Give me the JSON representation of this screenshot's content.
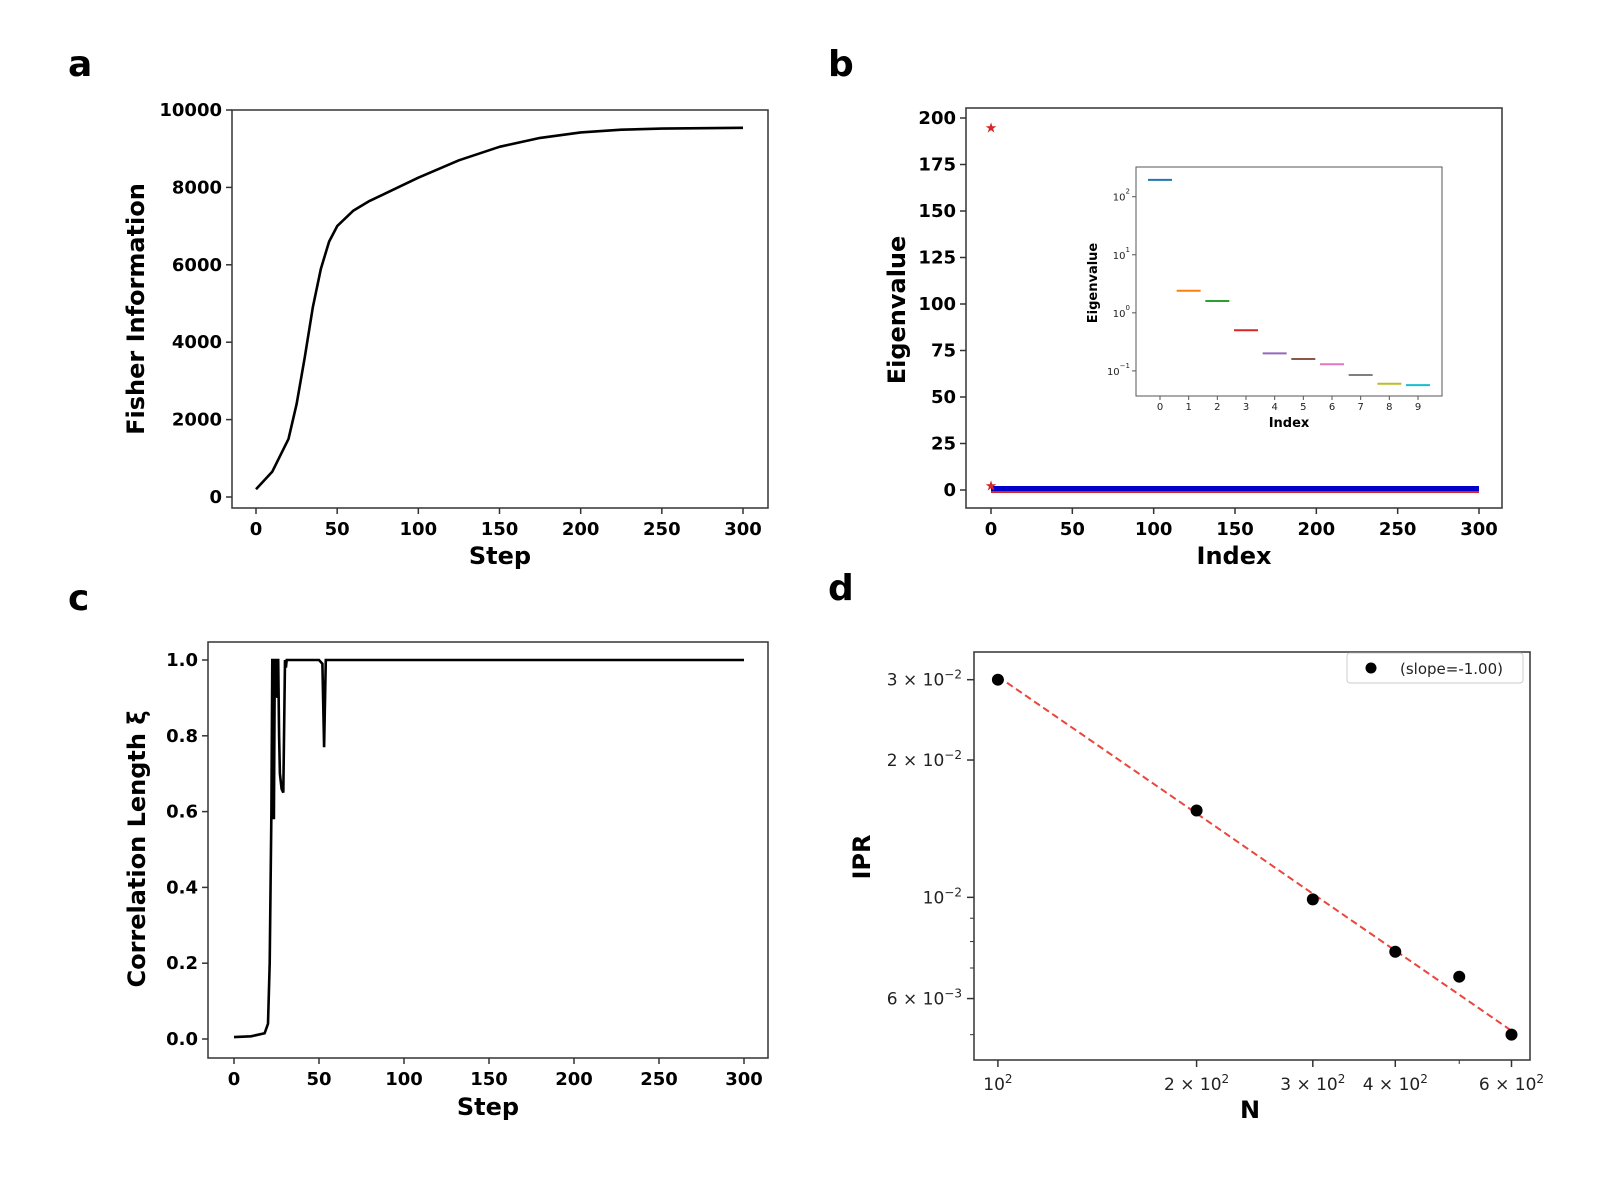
{
  "chart_data": [
    {
      "panel": "a",
      "type": "line",
      "xlabel": "Step",
      "ylabel": "Fisher Information",
      "xlim": [
        0,
        300
      ],
      "ylim": [
        0,
        10000
      ],
      "xticks": [
        0,
        50,
        100,
        150,
        200,
        250,
        300
      ],
      "yticks": [
        0,
        2000,
        4000,
        6000,
        8000,
        10000
      ],
      "x": [
        0,
        10,
        20,
        25,
        30,
        35,
        40,
        45,
        50,
        60,
        70,
        80,
        100,
        125,
        150,
        175,
        200,
        225,
        250,
        275,
        300
      ],
      "y": [
        200,
        650,
        1500,
        2400,
        3600,
        4900,
        5900,
        6600,
        7000,
        7400,
        7650,
        7850,
        8250,
        8700,
        9050,
        9280,
        9420,
        9490,
        9520,
        9530,
        9540
      ],
      "color": "#000000"
    },
    {
      "panel": "b",
      "type": "scatter",
      "xlabel": "Index",
      "ylabel": "Eigenvalue",
      "xlim": [
        0,
        300
      ],
      "ylim": [
        0,
        200
      ],
      "xticks": [
        0,
        50,
        100,
        150,
        200,
        250,
        300
      ],
      "yticks": [
        0,
        25,
        50,
        75,
        100,
        125,
        150,
        175,
        200
      ],
      "points": [
        {
          "x": 0,
          "y": 195,
          "color": "#d62728",
          "marker": "star"
        },
        {
          "x": 0,
          "y": 2.5,
          "color": "#d62728",
          "marker": "star"
        }
      ],
      "band": {
        "x_from": 0,
        "x_to": 300,
        "y": 0,
        "colors": [
          "#0000cc",
          "#d62728"
        ]
      },
      "inset": {
        "type": "bar-levels",
        "xlabel": "Index",
        "ylabel": "Eigenvalue",
        "yscale": "log",
        "xticks": [
          0,
          1,
          2,
          3,
          4,
          5,
          6,
          7,
          8,
          9
        ],
        "yticks": [
          {
            "label": "10",
            "exp": "-1"
          },
          {
            "label": "10",
            "exp": "0"
          },
          {
            "label": "10",
            "exp": "1"
          },
          {
            "label": "10",
            "exp": "2"
          }
        ],
        "values": [
          195,
          2.4,
          1.6,
          0.5,
          0.2,
          0.16,
          0.13,
          0.085,
          0.06,
          0.057
        ],
        "colors": [
          "#1f77b4",
          "#ff7f0e",
          "#2ca02c",
          "#d62728",
          "#9467bd",
          "#8c564b",
          "#e377c2",
          "#7f7f7f",
          "#bcbd22",
          "#17becf"
        ]
      }
    },
    {
      "panel": "c",
      "type": "line",
      "xlabel": "Step",
      "ylabel": "Correlation Length ξ",
      "xlim": [
        0,
        300
      ],
      "ylim": [
        0,
        1
      ],
      "xticks": [
        0,
        50,
        100,
        150,
        200,
        250,
        300
      ],
      "yticks": [
        "0.0",
        "0.2",
        "0.4",
        "0.6",
        "0.8",
        "1.0"
      ],
      "x": [
        0,
        10,
        18,
        20,
        21,
        22,
        22.5,
        23,
        23.5,
        24,
        24.5,
        25,
        25.5,
        26,
        26.5,
        27,
        28,
        29,
        30,
        30.5,
        31,
        32,
        50,
        52,
        53,
        54,
        56,
        300
      ],
      "y": [
        0.005,
        0.007,
        0.015,
        0.04,
        0.2,
        0.6,
        1.0,
        1.0,
        0.58,
        1.0,
        1.0,
        0.9,
        1.0,
        1.0,
        0.8,
        0.7,
        0.66,
        0.65,
        1.0,
        0.98,
        1.0,
        1.0,
        1.0,
        0.99,
        0.77,
        1.0,
        1.0,
        1.0
      ],
      "color": "#000000"
    },
    {
      "panel": "d",
      "type": "scatter",
      "xlabel": "N",
      "ylabel": "IPR",
      "xscale": "log",
      "yscale": "log",
      "xlim": [
        92,
        640
      ],
      "ylim": [
        0.0044,
        0.0345
      ],
      "xticks": [
        {
          "value": 100,
          "mant": "",
          "base": "10",
          "exp": "2"
        },
        {
          "value": 200,
          "mant": "2 × ",
          "base": "10",
          "exp": "2"
        },
        {
          "value": 300,
          "mant": "3 × ",
          "base": "10",
          "exp": "2"
        },
        {
          "value": 400,
          "mant": "4 × ",
          "base": "10",
          "exp": "2"
        },
        {
          "value": 600,
          "mant": "6 × ",
          "base": "10",
          "exp": "2"
        }
      ],
      "yticks": [
        {
          "value": 0.006,
          "mant": "6 × ",
          "base": "10",
          "exp": "−3"
        },
        {
          "value": 0.01,
          "mant": "",
          "base": "10",
          "exp": "−2"
        },
        {
          "value": 0.02,
          "mant": "2 × ",
          "base": "10",
          "exp": "−2"
        },
        {
          "value": 0.03,
          "mant": "3 × ",
          "base": "10",
          "exp": "−2"
        }
      ],
      "x": [
        100,
        200,
        300,
        400,
        500,
        600
      ],
      "y": [
        0.03,
        0.0155,
        0.0099,
        0.0076,
        0.0067,
        0.005
      ],
      "fit": {
        "slope": -1.0,
        "x": [
          100,
          600
        ],
        "y": [
          0.0305,
          0.0051
        ],
        "color": "#e8473c"
      },
      "legend": {
        "label": "(slope=-1.00)",
        "position": "top-right"
      },
      "color": "#000000"
    }
  ],
  "panels": {
    "a": {
      "letter": "a"
    },
    "b": {
      "letter": "b"
    },
    "c": {
      "letter": "c"
    },
    "d": {
      "letter": "d"
    }
  }
}
